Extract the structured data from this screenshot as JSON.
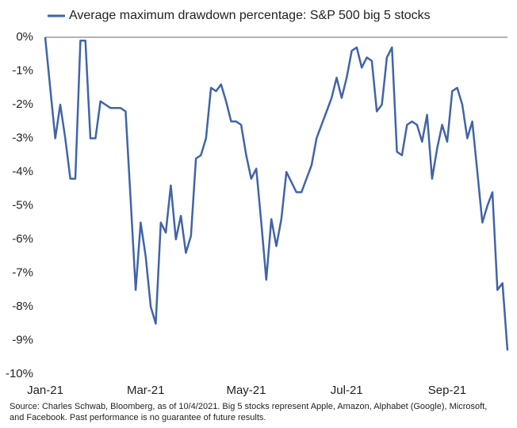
{
  "chart_data": {
    "type": "line",
    "categories": [
      "Jan-21",
      null,
      null,
      null,
      null,
      null,
      null,
      null,
      null,
      null,
      null,
      null,
      null,
      null,
      null,
      null,
      null,
      null,
      null,
      null,
      "Mar-21",
      null,
      null,
      null,
      null,
      null,
      null,
      null,
      null,
      null,
      null,
      null,
      null,
      null,
      null,
      null,
      null,
      null,
      null,
      null,
      "May-21",
      null,
      null,
      null,
      null,
      null,
      null,
      null,
      null,
      null,
      null,
      null,
      null,
      null,
      null,
      null,
      null,
      null,
      null,
      null,
      "Jul-21",
      null,
      null,
      null,
      null,
      null,
      null,
      null,
      null,
      null,
      null,
      null,
      null,
      null,
      null,
      null,
      null,
      null,
      null,
      null,
      "Sep-21",
      null,
      null,
      null,
      null,
      null,
      null,
      null,
      null,
      null,
      null,
      null,
      null
    ],
    "series": [
      {
        "name": "Average maximum drawdown percentage: S&P 500 big 5 stocks",
        "color": "#4164a8",
        "values": [
          0,
          -1.5,
          -3.0,
          -2.0,
          -3.0,
          -4.2,
          -4.2,
          -0.1,
          -0.1,
          -3.0,
          -3.0,
          -1.9,
          -2.0,
          -2.1,
          -2.1,
          -2.1,
          -2.2,
          -4.8,
          -7.5,
          -5.5,
          -6.5,
          -8.0,
          -8.5,
          -5.5,
          -5.8,
          -4.4,
          -6.0,
          -5.3,
          -6.4,
          -5.9,
          -3.6,
          -3.5,
          -3.0,
          -1.5,
          -1.6,
          -1.4,
          -1.9,
          -2.5,
          -2.5,
          -2.6,
          -3.5,
          -4.2,
          -3.9,
          -5.5,
          -7.2,
          -5.4,
          -6.2,
          -5.4,
          -4.0,
          -4.3,
          -4.6,
          -4.6,
          -4.2,
          -3.8,
          -3.0,
          -2.6,
          -2.2,
          -1.8,
          -1.2,
          -1.8,
          -1.2,
          -0.4,
          -0.3,
          -0.9,
          -0.6,
          -0.7,
          -2.2,
          -2.0,
          -0.6,
          -0.3,
          -3.4,
          -3.5,
          -2.6,
          -2.5,
          -2.6,
          -3.1,
          -2.3,
          -4.2,
          -3.3,
          -2.6,
          -3.1,
          -1.6,
          -1.5,
          -2.0,
          -3.0,
          -2.5,
          -4.0,
          -5.5,
          -5.0,
          -4.6,
          -7.5,
          -7.3,
          -9.3
        ]
      }
    ],
    "ylim": [
      -10,
      0
    ],
    "yticks": [
      {
        "value": 0,
        "label": "0%"
      },
      {
        "value": -1,
        "label": "-1%"
      },
      {
        "value": -2,
        "label": "-2%"
      },
      {
        "value": -3,
        "label": "-3%"
      },
      {
        "value": -4,
        "label": "-4%"
      },
      {
        "value": -5,
        "label": "-5%"
      },
      {
        "value": -6,
        "label": "-6%"
      },
      {
        "value": -7,
        "label": "-7%"
      },
      {
        "value": -8,
        "label": "-8%"
      },
      {
        "value": -9,
        "label": "-9%"
      },
      {
        "value": -10,
        "label": "-10%"
      }
    ],
    "note": "Source: Charles Schwab, Bloomberg, as of 10/4/2021.  Big 5 stocks represent Apple, Amazon, Alphabet (Google), Microsoft, and Facebook. Past performance is no guarantee of future results."
  }
}
